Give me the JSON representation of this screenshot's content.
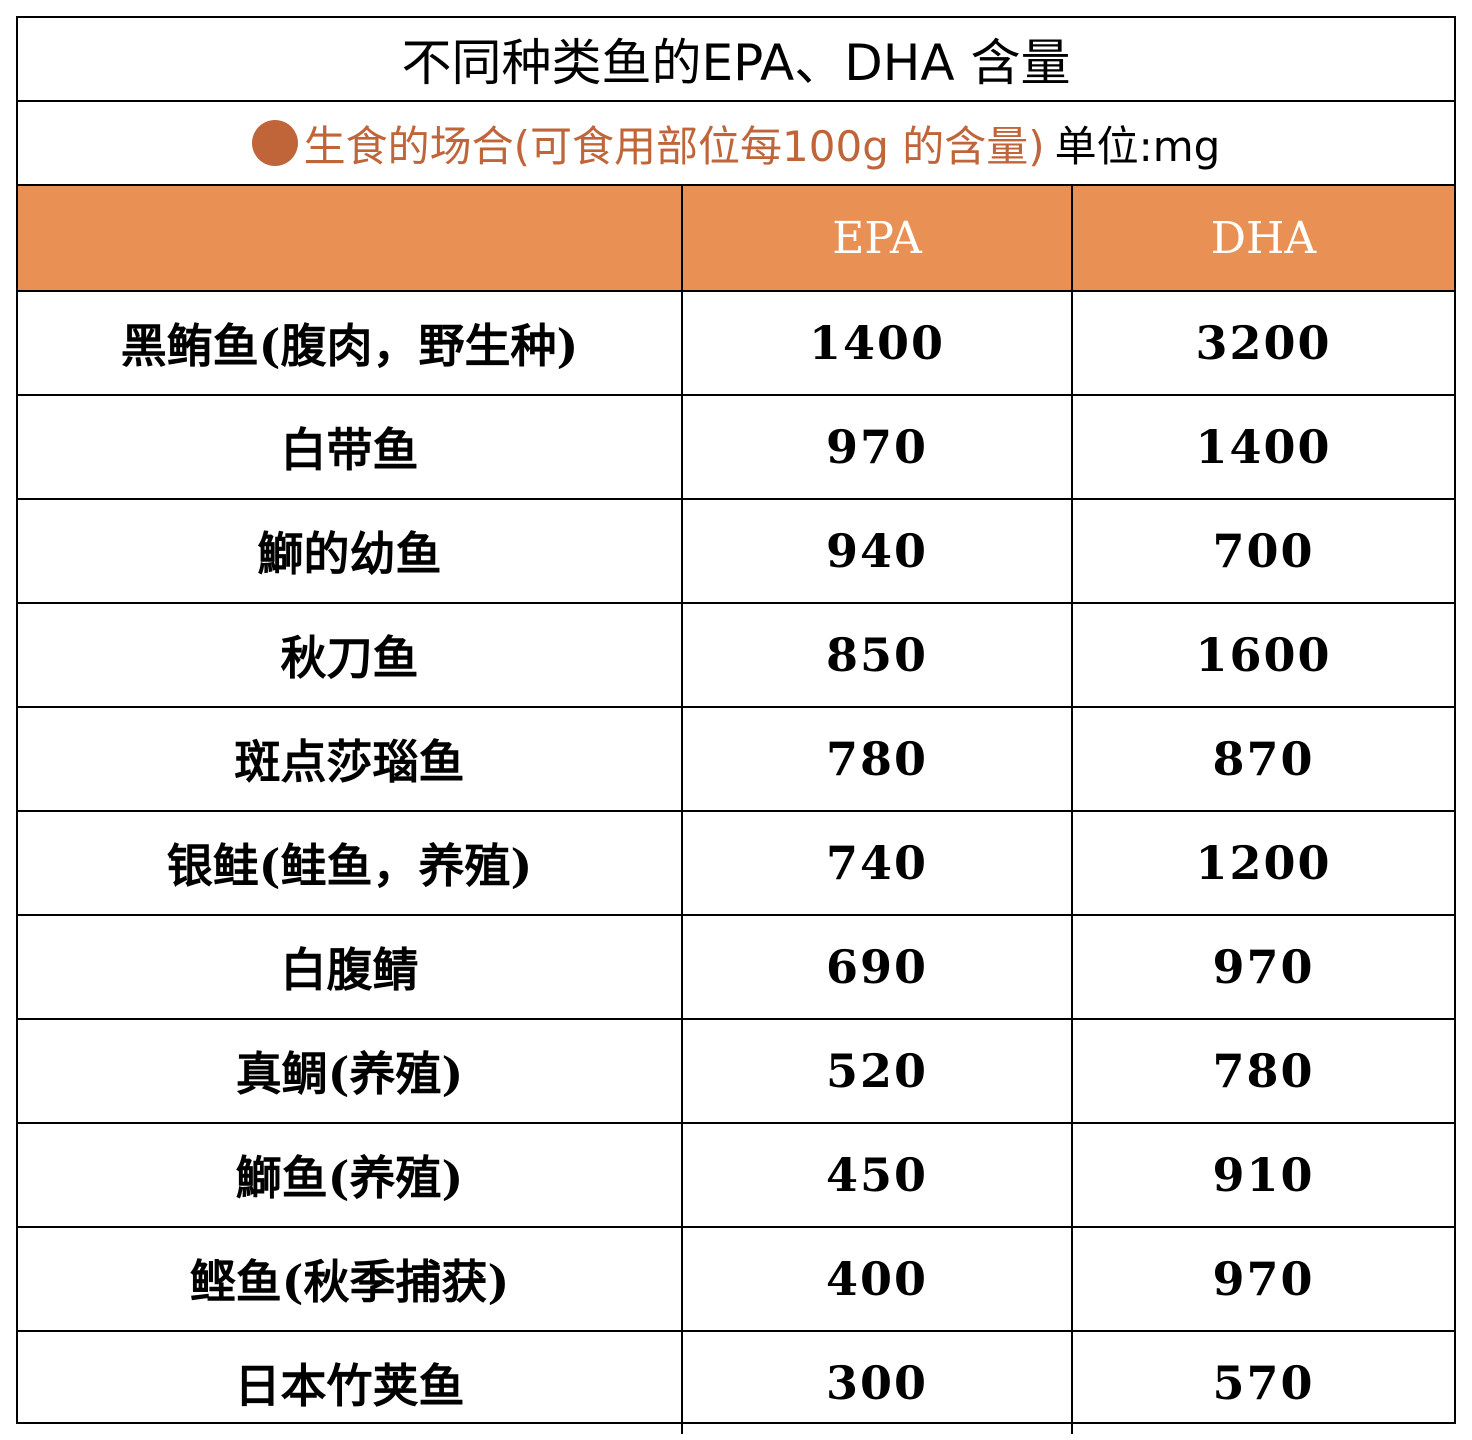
{
  "title": "不同种类鱼的EPA、DHA  含量",
  "subtitle": {
    "condition": "生食的场合(可食用部位每100g 的含量)",
    "unit": "单位:mg"
  },
  "table": {
    "columns": [
      "",
      "EPA",
      "DHA"
    ],
    "rows": [
      {
        "name": "黑鲔鱼(腹肉，野生种)",
        "epa": "1400",
        "dha": "3200"
      },
      {
        "name": "白带鱼",
        "epa": "970",
        "dha": "1400"
      },
      {
        "name": "鰤的幼鱼",
        "epa": "940",
        "dha": "700"
      },
      {
        "name": "秋刀鱼",
        "epa": "850",
        "dha": "1600"
      },
      {
        "name": "斑点莎瑙鱼",
        "epa": "780",
        "dha": "870"
      },
      {
        "name": "银鲑(鲑鱼，养殖)",
        "epa": "740",
        "dha": "1200"
      },
      {
        "name": "白腹鲭",
        "epa": "690",
        "dha": "970"
      },
      {
        "name": "真鲷(养殖)",
        "epa": "520",
        "dha": "780"
      },
      {
        "name": "鰤鱼(养殖)",
        "epa": "450",
        "dha": "910"
      },
      {
        "name": "鲣鱼(秋季捕获)",
        "epa": "400",
        "dha": "970"
      },
      {
        "name": "日本竹荚鱼",
        "epa": "300",
        "dha": "570"
      }
    ]
  },
  "colors": {
    "header_bg": "#e99155",
    "accent": "#c0653a",
    "border": "#000000"
  }
}
